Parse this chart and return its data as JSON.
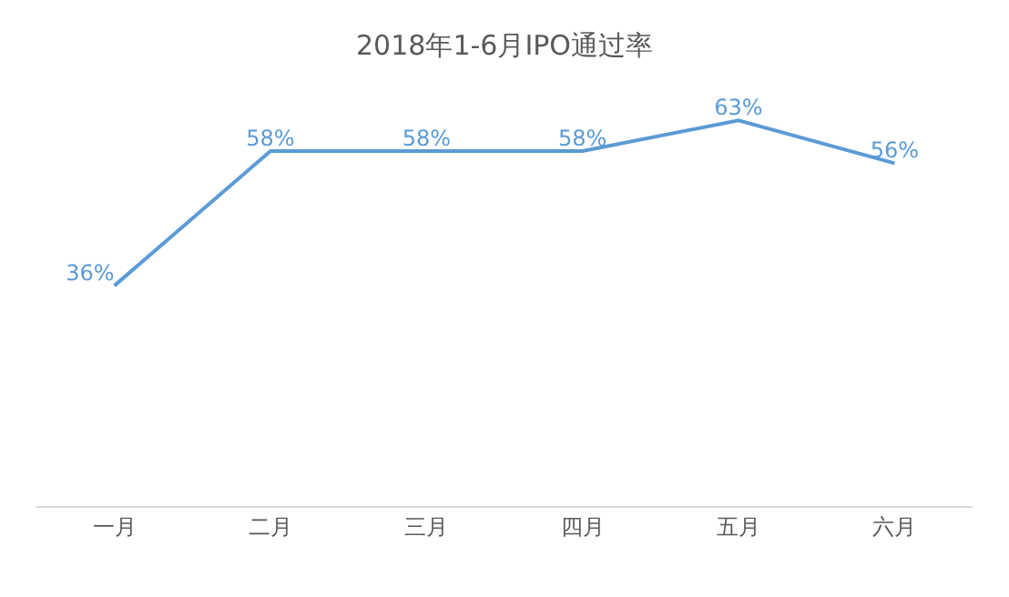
{
  "chart_data": {
    "type": "line",
    "title": "2018年1-6月IPO通过率",
    "categories": [
      "一月",
      "二月",
      "三月",
      "四月",
      "五月",
      "六月"
    ],
    "series": [
      {
        "color": "#5b9bd5",
        "values": [
          36,
          58,
          58,
          58,
          63,
          56
        ],
        "value_labels": [
          "36%",
          "58%",
          "58%",
          "58%",
          "63%",
          "56%"
        ]
      }
    ],
    "marker": "none",
    "line_style": "solid"
  }
}
